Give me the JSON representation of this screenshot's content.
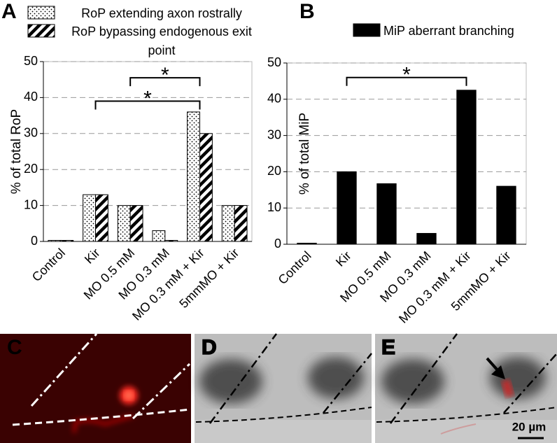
{
  "chart_data": [
    {
      "type": "bar",
      "label": "A",
      "ylabel": "% of total RoP",
      "categories": [
        "Control",
        "Kir",
        "MO 0.5 mM",
        "MO 0.3 mM",
        "MO 0.3 mM + Kir",
        "5mmMO + Kir"
      ],
      "series": [
        {
          "name": "RoP extending axon rostrally",
          "pattern": "dots",
          "color": "#000000",
          "values": [
            0.3,
            13,
            10,
            3,
            36,
            10
          ]
        },
        {
          "name": "RoP bypassing endogenous exit point",
          "pattern": "stripes",
          "color": "#000000",
          "values": [
            0.3,
            13,
            10,
            0.3,
            30,
            10
          ]
        }
      ],
      "ylim": [
        0,
        50
      ],
      "yticks": [
        0,
        10,
        20,
        30,
        40,
        50
      ],
      "grid": true,
      "annotations": [
        {
          "text": "*",
          "from": "Kir",
          "to": "MO 0.3 mM + Kir",
          "y": 39
        },
        {
          "text": "*",
          "from": "MO 0.5 mM",
          "to": "MO 0.3 mM + Kir",
          "y": 45.5
        }
      ]
    },
    {
      "type": "bar",
      "label": "B",
      "ylabel": "% of total MiP",
      "categories": [
        "Control",
        "Kir",
        "MO 0.5 mM",
        "MO 0.3 mM",
        "MO 0.3 mM + Kir",
        "5mmMO + Kir"
      ],
      "series": [
        {
          "name": "MiP aberrant branching",
          "pattern": "solid",
          "color": "#000000",
          "values": [
            0.3,
            20,
            16.7,
            3,
            42.5,
            16
          ]
        }
      ],
      "ylim": [
        0,
        50
      ],
      "yticks": [
        0,
        10,
        20,
        30,
        40,
        50
      ],
      "grid": true,
      "annotations": [
        {
          "text": "*",
          "from": "Kir",
          "to": "MO 0.3 mM + Kir",
          "y": 46
        }
      ]
    }
  ],
  "image_panels": [
    {
      "label": "C"
    },
    {
      "label": "D"
    },
    {
      "label": "E"
    }
  ],
  "scale_bar": "20 µm"
}
